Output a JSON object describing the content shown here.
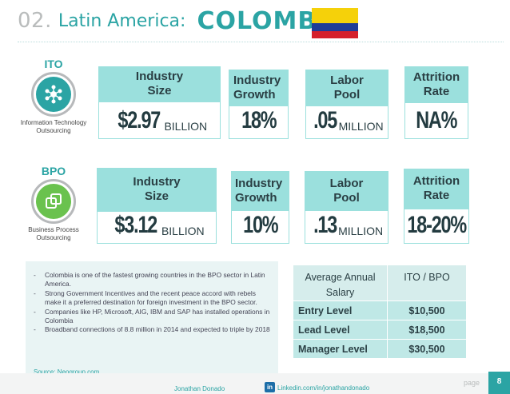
{
  "header": {
    "number": "02.",
    "region": "Latin America:",
    "country": "COLOMBIA",
    "flag_colors": {
      "yellow": "#f5d10a",
      "blue": "#1f3c97",
      "red": "#d5202c"
    }
  },
  "accent_color": "#2ba4a4",
  "header_fill_color": "#9be0dd",
  "ito": {
    "label": "ITO",
    "icon": "network-icon",
    "sub_line1": "Information Technology",
    "sub_line2": "Outsourcing",
    "size_head_1": "Industry",
    "size_head_2": "Size",
    "size_value": "$2.97",
    "size_unit": "BILLION",
    "growth_head_1": "Industry",
    "growth_head_2": "Growth",
    "growth_value": "18%",
    "labor_head_1": "Labor",
    "labor_head_2": "Pool",
    "labor_value": ".05",
    "labor_unit": "MILLION",
    "attrition_head_1": "Attrition",
    "attrition_head_2": "Rate",
    "attrition_value": "NA%"
  },
  "bpo": {
    "label": "BPO",
    "icon": "copy-squares-icon",
    "sub_line1": "Business Process",
    "sub_line2": "Outsourcing",
    "size_head_1": "Industry",
    "size_head_2": "Size",
    "size_value": "$3.12",
    "size_unit": "BILLION",
    "growth_head_1": "Industry",
    "growth_head_2": "Growth",
    "growth_value": "10%",
    "labor_head_1": "Labor",
    "labor_head_2": "Pool",
    "labor_value": ".13",
    "labor_unit": "MILLION",
    "attrition_head_1": "Attrition",
    "attrition_head_2": "Rate",
    "attrition_value": "18-20%"
  },
  "bullets": [
    "Colombia is one of the fastest growing countries in the BPO sector in Latin America.",
    "Strong Government Incentives and the recent peace accord with rebels make it a preferred destination for foreign investment in the BPO sector.",
    "Companies like HP, Microsoft, AIG, IBM and SAP has installed operations in Colombia",
    "Broadband connections of 8.8 million in 2014 and expected to triple by 2018"
  ],
  "source": "Source: Neogroup.com",
  "salary_table": {
    "col1_header": "Average Annual Salary",
    "col2_header": "ITO / BPO",
    "rows": [
      {
        "level": "Entry Level",
        "value": "$10,500"
      },
      {
        "level": "Lead Level",
        "value": "$18,500"
      },
      {
        "level": "Manager Level",
        "value": "$30,500"
      }
    ]
  },
  "footer": {
    "name": "Jonathan Donado",
    "linkedin_icon": "in",
    "linkedin": "Linkedin.com/in/jonathandonado",
    "page_label": "page",
    "page_number": "8"
  }
}
